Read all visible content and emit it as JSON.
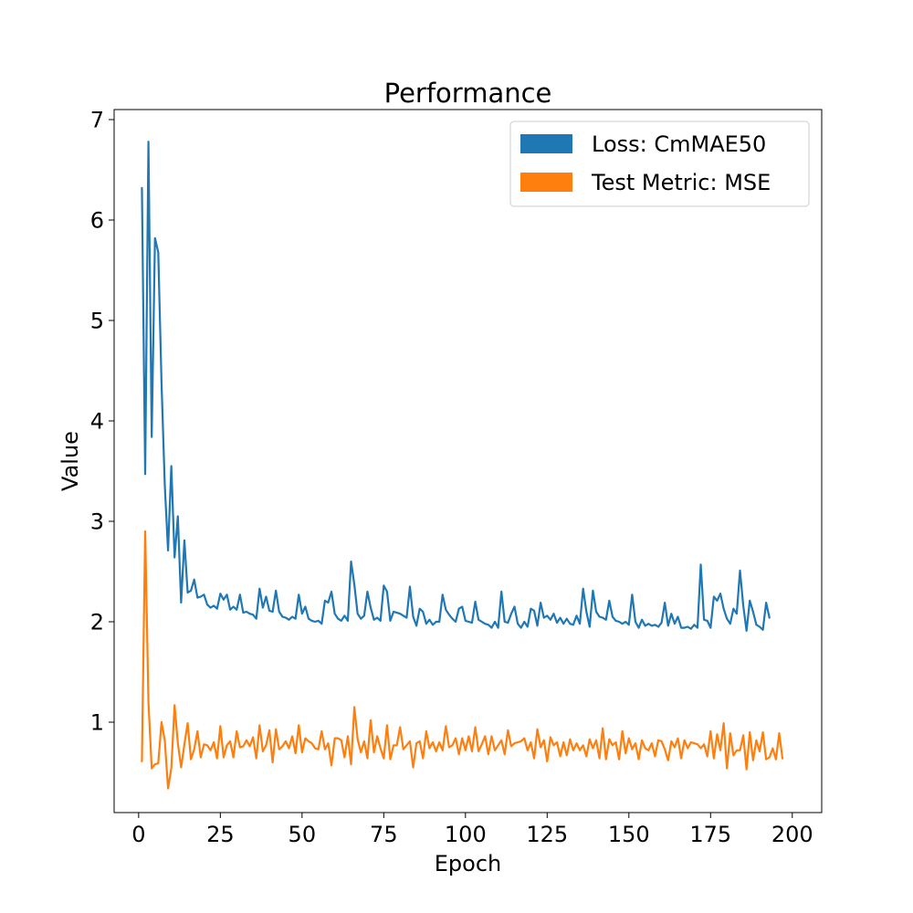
{
  "chart_data": {
    "type": "line",
    "title": "Performance",
    "xlabel": "Epoch",
    "ylabel": "Value",
    "xlim": [
      -7.5,
      209
    ],
    "ylim": [
      0.1,
      7.1
    ],
    "xticks": [
      0,
      25,
      50,
      75,
      100,
      125,
      150,
      175,
      200
    ],
    "yticks": [
      1,
      2,
      3,
      4,
      5,
      6,
      7
    ],
    "legend_position": "top-right",
    "grid": false,
    "series": [
      {
        "name": "Loss: CmMAE50",
        "color": "#1f77b4",
        "values": [
          6.32,
          3.47,
          6.78,
          3.84,
          5.82,
          5.68,
          4.38,
          3.36,
          2.71,
          3.55,
          2.64,
          3.05,
          2.19,
          2.81,
          2.29,
          2.31,
          2.42,
          2.24,
          2.25,
          2.27,
          2.17,
          2.14,
          2.16,
          2.13,
          2.28,
          2.22,
          2.27,
          2.12,
          2.15,
          2.12,
          2.27,
          2.09,
          2.1,
          2.08,
          2.07,
          2.03,
          2.33,
          2.14,
          2.25,
          2.11,
          2.1,
          2.31,
          2.1,
          2.05,
          2.04,
          2.02,
          2.05,
          2.03,
          2.27,
          2.08,
          2.15,
          2.03,
          2.01,
          2.0,
          2.01,
          1.98,
          2.21,
          2.19,
          2.3,
          2.08,
          2.03,
          2.01,
          2.06,
          2.01,
          2.6,
          2.37,
          2.08,
          2.03,
          2.06,
          2.3,
          2.14,
          2.02,
          2.04,
          2.01,
          2.36,
          2.3,
          2.01,
          2.1,
          2.09,
          2.08,
          2.06,
          2.04,
          2.35,
          2.05,
          1.96,
          2.13,
          2.1,
          1.98,
          2.02,
          1.97,
          2.0,
          2.0,
          2.27,
          2.12,
          2.07,
          2.03,
          2.0,
          2.13,
          2.15,
          2.01,
          2.0,
          1.99,
          2.2,
          2.02,
          2.0,
          1.98,
          1.97,
          1.94,
          2.0,
          1.94,
          2.3,
          2.0,
          1.99,
          2.08,
          2.15,
          1.98,
          1.94,
          2.0,
          1.95,
          2.13,
          2.11,
          1.96,
          2.19,
          2.04,
          2.06,
          2.02,
          2.08,
          1.99,
          2.04,
          1.98,
          2.03,
          1.98,
          1.97,
          2.06,
          1.98,
          2.33,
          2.1,
          1.95,
          2.31,
          2.1,
          2.05,
          2.04,
          2.02,
          2.21,
          2.05,
          2.01,
          2.0,
          1.98,
          2.0,
          1.97,
          2.27,
          2.0,
          1.94,
          2.02,
          1.96,
          1.98,
          1.96,
          1.97,
          1.95,
          1.99,
          2.19,
          1.96,
          2.08,
          1.98,
          2.05,
          1.94,
          1.94,
          1.95,
          1.93,
          1.97,
          1.94,
          2.57,
          2.02,
          2.01,
          1.94,
          2.25,
          2.21,
          2.28,
          2.13,
          2.03,
          1.98,
          2.13,
          2.08,
          2.51,
          2.16,
          1.91,
          2.21,
          2.1,
          1.97,
          1.95,
          1.92,
          2.19,
          2.04
        ]
      },
      {
        "name": "Test Metric: MSE",
        "color": "#ff7f0e",
        "values": [
          0.61,
          2.9,
          1.2,
          0.54,
          0.58,
          0.59,
          1.0,
          0.82,
          0.34,
          0.54,
          1.17,
          0.79,
          0.55,
          0.78,
          0.99,
          0.63,
          0.73,
          0.91,
          0.65,
          0.78,
          0.77,
          0.72,
          0.8,
          0.64,
          0.96,
          0.65,
          0.77,
          0.81,
          0.65,
          0.91,
          0.75,
          0.76,
          0.82,
          0.76,
          0.85,
          0.64,
          0.97,
          0.71,
          0.77,
          0.92,
          0.6,
          0.93,
          0.73,
          0.76,
          0.81,
          0.74,
          0.86,
          0.69,
          0.97,
          0.7,
          0.84,
          0.81,
          0.79,
          0.74,
          0.73,
          0.91,
          0.73,
          0.79,
          0.57,
          0.84,
          0.84,
          0.82,
          0.65,
          0.86,
          0.58,
          1.15,
          0.83,
          0.7,
          0.81,
          0.64,
          1.02,
          0.7,
          0.86,
          0.74,
          0.64,
          0.97,
          0.63,
          0.77,
          0.77,
          0.95,
          0.73,
          0.77,
          0.81,
          0.55,
          0.79,
          0.81,
          0.64,
          0.91,
          0.74,
          0.8,
          0.71,
          0.8,
          0.72,
          0.96,
          0.75,
          0.77,
          0.84,
          0.68,
          0.84,
          0.72,
          0.86,
          0.71,
          0.95,
          0.71,
          0.78,
          0.86,
          0.68,
          0.86,
          0.72,
          0.77,
          0.82,
          0.68,
          0.92,
          0.76,
          0.79,
          0.8,
          0.81,
          0.84,
          0.72,
          0.8,
          0.64,
          0.93,
          0.75,
          0.82,
          0.61,
          0.85,
          0.77,
          0.8,
          0.66,
          0.8,
          0.67,
          0.83,
          0.72,
          0.79,
          0.72,
          0.77,
          0.66,
          0.83,
          0.74,
          0.82,
          0.64,
          0.94,
          0.63,
          0.83,
          0.77,
          0.8,
          0.63,
          0.91,
          0.69,
          0.84,
          0.73,
          0.79,
          0.63,
          0.82,
          0.74,
          0.72,
          0.79,
          0.66,
          0.82,
          0.81,
          0.73,
          0.62,
          0.81,
          0.75,
          0.84,
          0.64,
          0.82,
          0.74,
          0.8,
          0.79,
          0.78,
          0.74,
          0.78,
          0.66,
          0.91,
          0.64,
          0.88,
          0.72,
          0.99,
          0.54,
          0.89,
          0.67,
          0.72,
          0.72,
          0.87,
          0.53,
          0.9,
          0.62,
          0.82,
          0.71,
          0.9,
          0.63,
          0.65,
          0.74,
          0.63,
          0.89,
          0.64
        ]
      }
    ]
  }
}
